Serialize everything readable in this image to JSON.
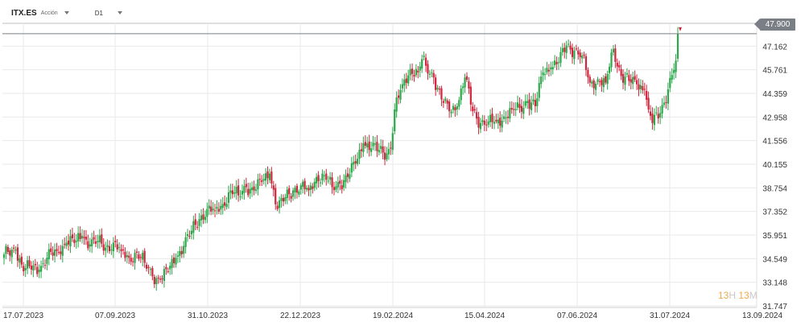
{
  "header": {
    "symbol": "ITX.ES",
    "instrument_type": "Acción",
    "timeframe": "D1"
  },
  "price_badge": "47.900",
  "countdown": {
    "hours": "13",
    "hours_unit": "H",
    "minutes": "13",
    "minutes_unit": "M"
  },
  "colors": {
    "up": "#2aa84a",
    "down": "#d0253c",
    "grid": "#e9e9e9",
    "price_line": "#7a7f85",
    "badge": "#7a7f85"
  },
  "chart_data": {
    "type": "candlestick",
    "symbol": "ITX.ES",
    "timeframe": "D1",
    "ylim": [
      31.747,
      48.564
    ],
    "y_ticks": [
      "47.162",
      "45.761",
      "44.359",
      "42.958",
      "41.556",
      "40.155",
      "38.754",
      "37.352",
      "35.951",
      "34.549",
      "33.148",
      "31.747"
    ],
    "x_ticks": [
      "17.07.2023",
      "07.09.2023",
      "31.10.2023",
      "22.12.2023",
      "19.02.2024",
      "15.04.2024",
      "07.06.2024",
      "31.07.2024",
      "13.09.2024"
    ],
    "last_price": 47.9,
    "grid": true,
    "anchor_closes": [
      [
        0,
        34.8
      ],
      [
        6,
        35.1
      ],
      [
        10,
        33.8
      ],
      [
        13,
        34.1
      ],
      [
        18,
        33.9
      ],
      [
        22,
        34.6
      ],
      [
        27,
        35.0
      ],
      [
        32,
        35.5
      ],
      [
        37,
        35.6
      ],
      [
        40,
        35.9
      ],
      [
        44,
        35.4
      ],
      [
        48,
        35.6
      ],
      [
        52,
        35.2
      ],
      [
        56,
        35.5
      ],
      [
        60,
        35.0
      ],
      [
        64,
        34.6
      ],
      [
        68,
        34.9
      ],
      [
        72,
        34.3
      ],
      [
        76,
        33.5
      ],
      [
        80,
        33.3
      ],
      [
        84,
        33.8
      ],
      [
        88,
        34.6
      ],
      [
        92,
        35.3
      ],
      [
        96,
        36.2
      ],
      [
        100,
        36.9
      ],
      [
        104,
        37.5
      ],
      [
        108,
        37.4
      ],
      [
        112,
        37.8
      ],
      [
        116,
        38.6
      ],
      [
        120,
        38.3
      ],
      [
        124,
        38.8
      ],
      [
        128,
        38.6
      ],
      [
        132,
        39.1
      ],
      [
        136,
        39.6
      ],
      [
        140,
        37.5
      ],
      [
        144,
        38.2
      ],
      [
        148,
        38.6
      ],
      [
        152,
        38.9
      ],
      [
        156,
        38.6
      ],
      [
        160,
        39.4
      ],
      [
        164,
        39.5
      ],
      [
        168,
        38.8
      ],
      [
        172,
        39.0
      ],
      [
        176,
        39.4
      ],
      [
        180,
        40.2
      ],
      [
        184,
        41.4
      ],
      [
        188,
        41.1
      ],
      [
        192,
        41.0
      ],
      [
        196,
        40.8
      ],
      [
        198,
        41.1
      ],
      [
        199,
        42.0
      ],
      [
        200,
        43.4
      ],
      [
        204,
        44.9
      ],
      [
        208,
        45.8
      ],
      [
        212,
        45.6
      ],
      [
        214,
        46.4
      ],
      [
        216,
        46.0
      ],
      [
        220,
        45.3
      ],
      [
        224,
        44.0
      ],
      [
        228,
        43.3
      ],
      [
        232,
        43.6
      ],
      [
        236,
        45.3
      ],
      [
        240,
        43.3
      ],
      [
        244,
        42.6
      ],
      [
        248,
        42.7
      ],
      [
        252,
        42.7
      ],
      [
        256,
        43.0
      ],
      [
        260,
        43.4
      ],
      [
        264,
        43.5
      ],
      [
        268,
        43.9
      ],
      [
        272,
        43.6
      ],
      [
        276,
        45.6
      ],
      [
        280,
        45.9
      ],
      [
        284,
        46.2
      ],
      [
        288,
        47.2
      ],
      [
        292,
        46.9
      ],
      [
        296,
        46.6
      ],
      [
        300,
        45.0
      ],
      [
        304,
        45.2
      ],
      [
        308,
        45.0
      ],
      [
        312,
        47.0
      ],
      [
        316,
        45.4
      ],
      [
        320,
        45.1
      ],
      [
        324,
        44.9
      ],
      [
        328,
        44.6
      ],
      [
        330,
        43.4
      ],
      [
        332,
        42.6
      ],
      [
        336,
        43.2
      ],
      [
        340,
        44.6
      ],
      [
        344,
        46.3
      ],
      [
        345,
        47.9
      ]
    ]
  }
}
